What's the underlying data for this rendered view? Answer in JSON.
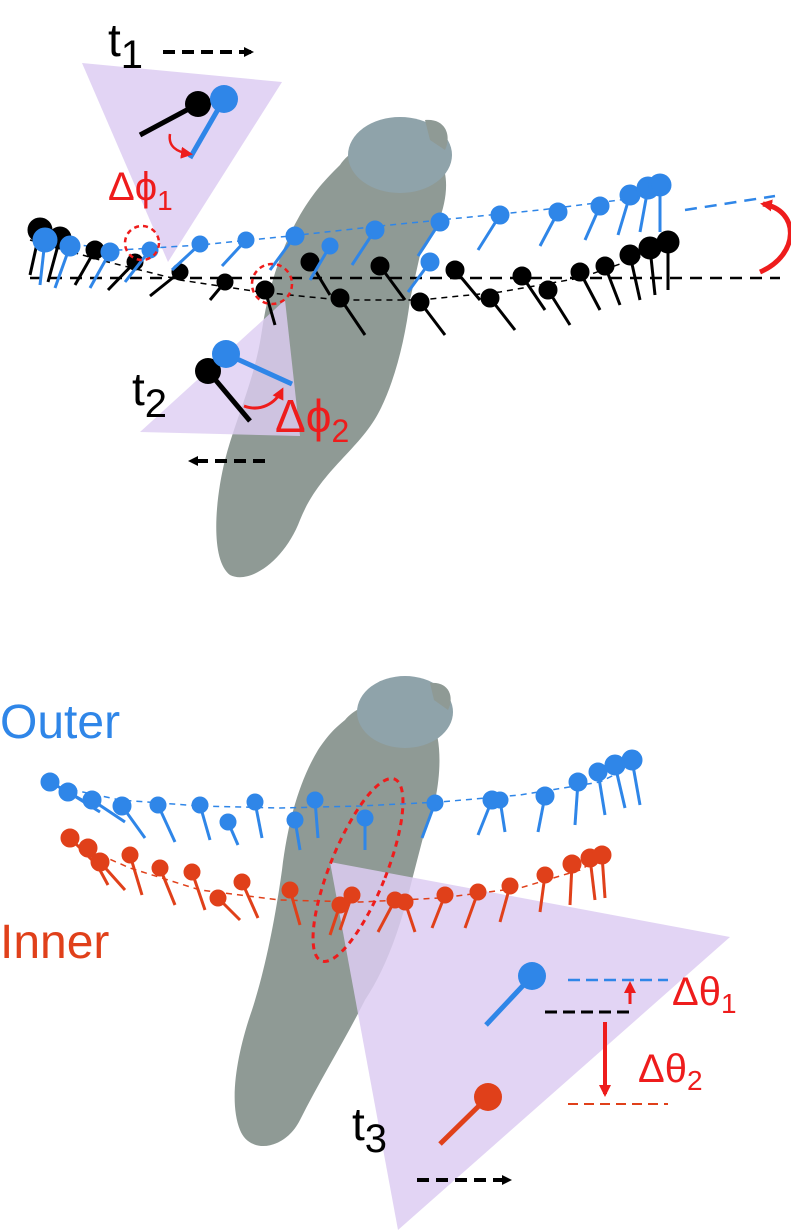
{
  "colors": {
    "black": "#000000",
    "blue": "#2f86e8",
    "red": "#ee1c1c",
    "orange": "#e0401a",
    "body": "#8f9a95",
    "head": "#8fa3aa",
    "cone": "#ddcdf2"
  },
  "top": {
    "t1_main": "t",
    "t1_sub": "1",
    "t2_main": "t",
    "t2_sub": "2",
    "dphi1_main": "Δϕ",
    "dphi1_sub": "1",
    "dphi2_main": "Δϕ",
    "dphi2_sub": "2"
  },
  "bottom": {
    "outer_label": "Outer",
    "inner_label": "Inner",
    "t3_main": "t",
    "t3_sub": "3",
    "dtheta1_main": "Δθ",
    "dtheta1_sub": "1",
    "dtheta2_main": "Δθ",
    "dtheta2_sub": "2"
  }
}
